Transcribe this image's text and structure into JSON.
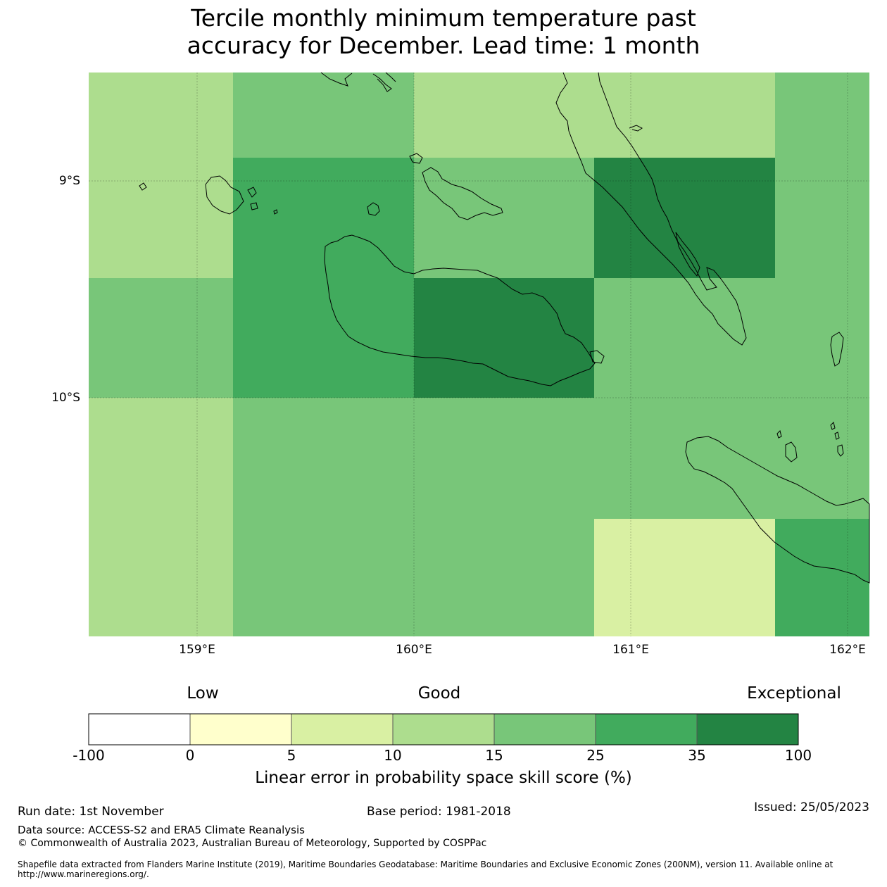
{
  "title": {
    "line1": "Tercile monthly minimum temperature past",
    "line2": "accuracy for December. Lead time: 1 month"
  },
  "map": {
    "lon_range": [
      158.5,
      162.1
    ],
    "lat_range": [
      -8.5,
      -11.1
    ],
    "x_ticks": [
      "159°E",
      "160°E",
      "161°E",
      "162°E"
    ],
    "y_ticks": [
      "9°S",
      "10°S"
    ],
    "grid_cells": {
      "lon_edges": [
        158.5,
        159.17,
        160.0,
        160.83,
        161.67,
        162.1
      ],
      "lat_edges": [
        -8.5,
        -8.89,
        -9.44,
        -10.0,
        -10.56,
        -11.1
      ],
      "skill_values": [
        [
          12,
          20,
          12,
          12,
          20
        ],
        [
          12,
          30,
          20,
          50,
          20
        ],
        [
          20,
          30,
          50,
          20,
          20
        ],
        [
          12,
          20,
          20,
          20,
          20
        ],
        [
          12,
          20,
          20,
          7,
          30
        ]
      ]
    }
  },
  "colorbar": {
    "category_low": "Low",
    "category_good": "Good",
    "category_exceptional": "Exceptional",
    "bounds": [
      "-100",
      "0",
      "5",
      "10",
      "15",
      "25",
      "35",
      "100"
    ],
    "colors": [
      "#ffffff",
      "#ffffcc",
      "#d9f0a3",
      "#addd8e",
      "#78c679",
      "#41ab5d",
      "#238443"
    ],
    "label": "Linear error in probability space skill score (%)"
  },
  "footer": {
    "run_date": "Run date: 1st November",
    "base_period": "Base period: 1981-2018",
    "issued": "Issued: 25/05/2023",
    "data_source": "Data source: ACCESS-S2 and ERA5 Climate Reanalysis",
    "copyright": "© Commonwealth of Australia 2023, Australian Bureau of Meteorology, Supported by COSPPac",
    "shapefile_note": "Shapefile data extracted from Flanders Marine Institute (2019), Maritime Boundaries Geodatabase: Maritime Boundaries and Exclusive Economic Zones (200NM), version 11. Available online at http://www.marineregions.org/."
  }
}
